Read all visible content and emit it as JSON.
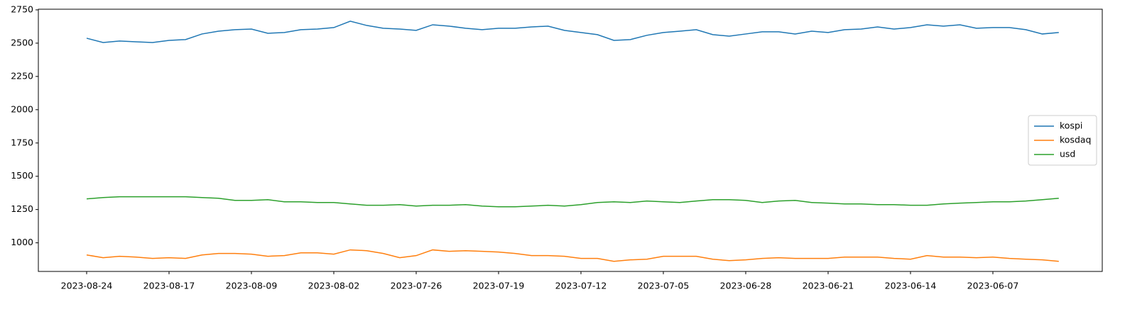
{
  "chart_data": {
    "type": "line",
    "categories": [
      "2023-08-24",
      null,
      null,
      null,
      null,
      "2023-08-17",
      null,
      null,
      null,
      null,
      "2023-08-09",
      null,
      null,
      null,
      null,
      "2023-08-02",
      null,
      null,
      null,
      null,
      "2023-07-26",
      null,
      null,
      null,
      null,
      "2023-07-19",
      null,
      null,
      null,
      null,
      "2023-07-12",
      null,
      null,
      null,
      null,
      "2023-07-05",
      null,
      null,
      null,
      null,
      "2023-06-28",
      null,
      null,
      null,
      null,
      "2023-06-21",
      null,
      null,
      null,
      null,
      "2023-06-14",
      null,
      null,
      null,
      null,
      "2023-06-07",
      null,
      null,
      null,
      null
    ],
    "series": [
      {
        "name": "kospi",
        "color": "#1f77b4",
        "values": [
          2537,
          2505,
          2516,
          2510,
          2505,
          2521,
          2527,
          2569,
          2590,
          2601,
          2606,
          2574,
          2580,
          2601,
          2606,
          2617,
          2665,
          2633,
          2612,
          2606,
          2596,
          2638,
          2628,
          2612,
          2601,
          2612,
          2612,
          2622,
          2628,
          2596,
          2580,
          2564,
          2521,
          2527,
          2559,
          2580,
          2590,
          2601,
          2564,
          2553,
          2569,
          2585,
          2585,
          2569,
          2590,
          2580,
          2601,
          2606,
          2622,
          2606,
          2617,
          2638,
          2628,
          2638,
          2612,
          2617,
          2617,
          2601,
          2569,
          2580
        ]
      },
      {
        "name": "kosdaq",
        "color": "#ff7f0e",
        "values": [
          909,
          888,
          899,
          893,
          883,
          888,
          883,
          909,
          920,
          920,
          915,
          899,
          904,
          925,
          925,
          915,
          947,
          941,
          920,
          888,
          904,
          947,
          936,
          941,
          936,
          931,
          920,
          904,
          904,
          899,
          883,
          883,
          861,
          872,
          877,
          899,
          899,
          899,
          877,
          866,
          872,
          883,
          888,
          883,
          883,
          883,
          893,
          893,
          893,
          883,
          877,
          904,
          893,
          893,
          888,
          893,
          883,
          877,
          872,
          861
        ]
      },
      {
        "name": "usd",
        "color": "#2ca02c",
        "values": [
          1330,
          1340,
          1346,
          1346,
          1346,
          1346,
          1346,
          1340,
          1335,
          1319,
          1319,
          1324,
          1308,
          1308,
          1303,
          1303,
          1292,
          1282,
          1282,
          1287,
          1276,
          1282,
          1282,
          1287,
          1276,
          1271,
          1271,
          1276,
          1282,
          1276,
          1287,
          1303,
          1308,
          1303,
          1314,
          1308,
          1303,
          1314,
          1324,
          1324,
          1319,
          1303,
          1314,
          1319,
          1303,
          1298,
          1292,
          1292,
          1287,
          1287,
          1282,
          1282,
          1292,
          1298,
          1303,
          1308,
          1308,
          1314,
          1324,
          1335
        ]
      }
    ],
    "ylim": [
      785,
      2755
    ],
    "yticks": [
      1000,
      1250,
      1500,
      1750,
      2000,
      2250,
      2500,
      2750
    ],
    "grid": false,
    "legend": "right"
  }
}
